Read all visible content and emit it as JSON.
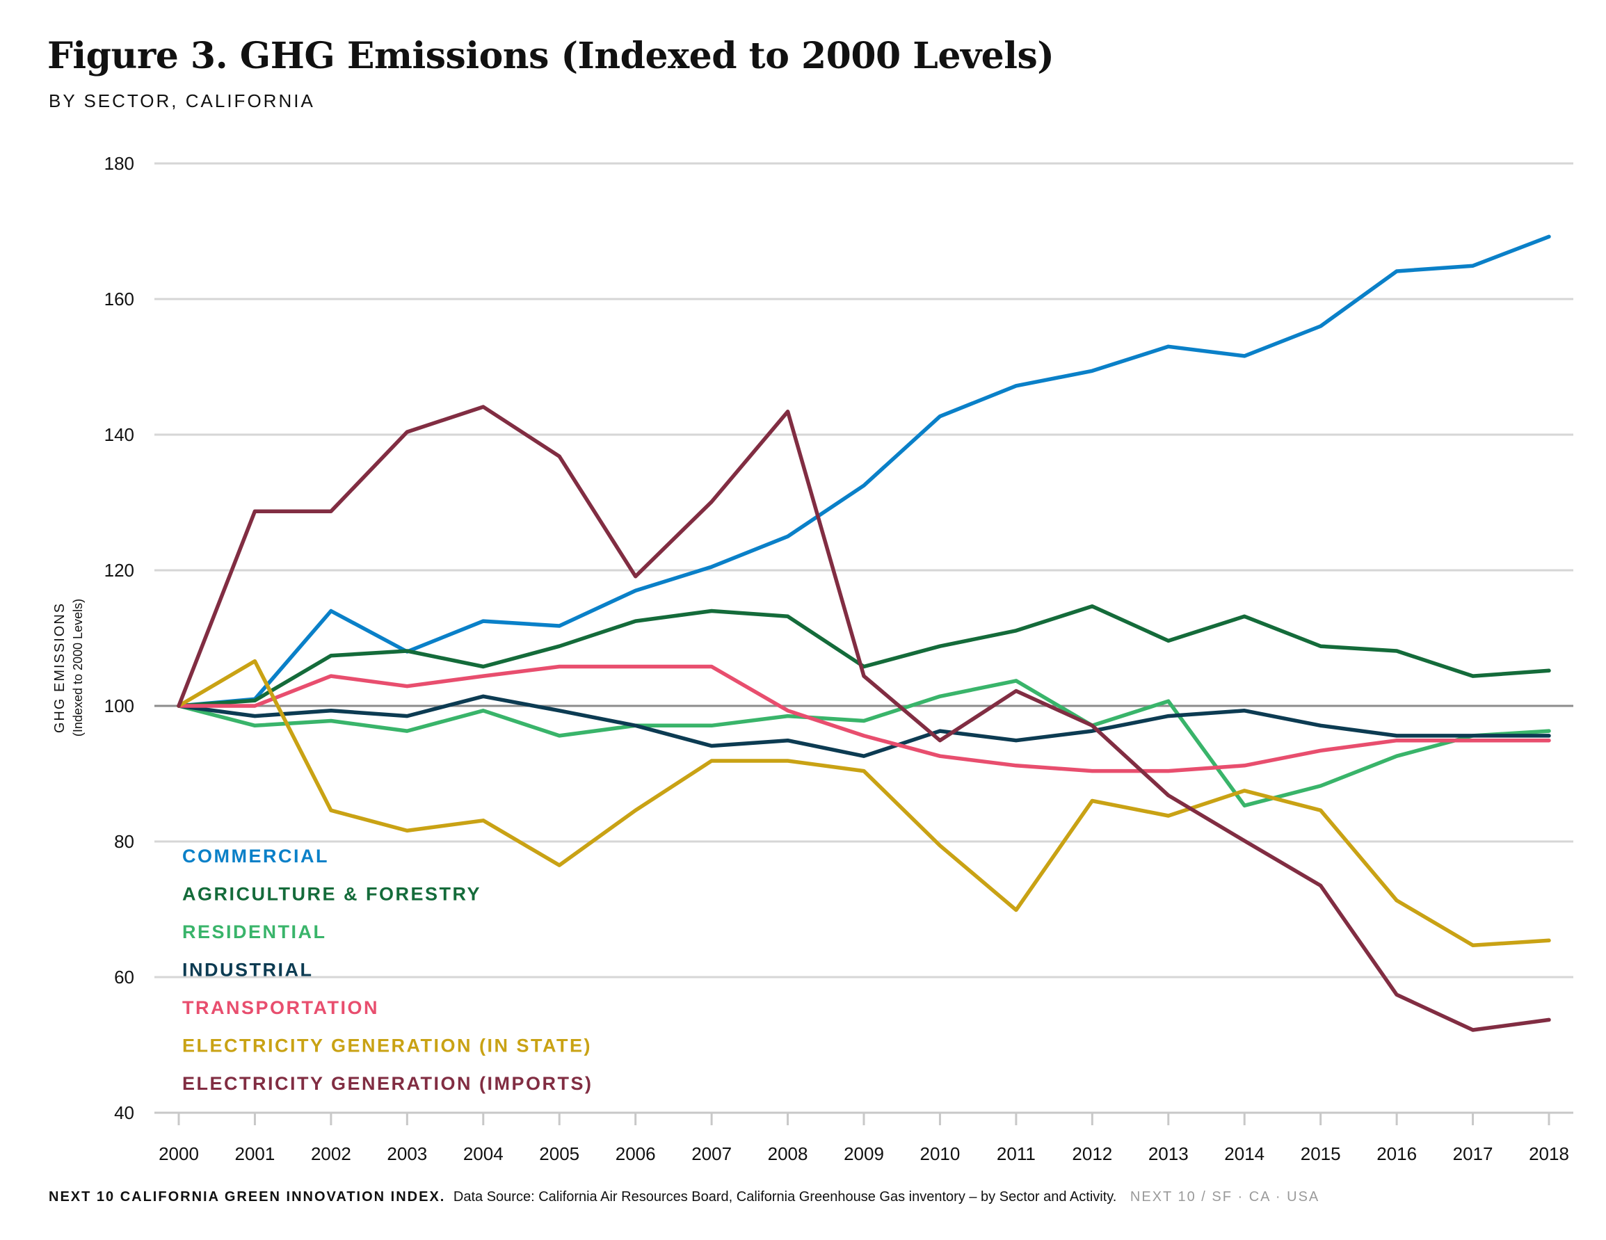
{
  "header": {
    "title": "Figure 3. GHG Emissions (Indexed to 2000 Levels)",
    "subtitle": "BY SECTOR, CALIFORNIA"
  },
  "footer": {
    "index_name": "NEXT 10 CALIFORNIA GREEN INNOVATION INDEX.",
    "source": "Data Source: California Air Resources Board, California Greenhouse Gas inventory – by Sector and Activity.",
    "brand": "NEXT 10 / SF · CA · USA"
  },
  "chart_data": {
    "type": "line",
    "ylabel": "GHG EMISSIONS",
    "ylabel_sub": "(Indexed to 2000 Levels)",
    "xlabel": "",
    "ylim": [
      40,
      180
    ],
    "yticks": [
      40,
      60,
      80,
      100,
      120,
      140,
      160,
      180
    ],
    "baseline": 100,
    "grid": true,
    "legend_position": "bottom-left",
    "x": [
      2000,
      2001,
      2002,
      2003,
      2004,
      2005,
      2006,
      2007,
      2008,
      2009,
      2010,
      2011,
      2012,
      2013,
      2014,
      2015,
      2016,
      2017,
      2018
    ],
    "series": [
      {
        "name": "COMMERCIAL",
        "color": "#0a80c8",
        "values": [
          100,
          101,
          114,
          108,
          112.5,
          111.8,
          117,
          120.5,
          125,
          132.5,
          142.7,
          147.2,
          149.4,
          153,
          151.6,
          156,
          164.1,
          164.9,
          169.2
        ]
      },
      {
        "name": "AGRICULTURE & FORESTRY",
        "color": "#146b3a",
        "values": [
          100,
          100.8,
          107.4,
          108.1,
          105.8,
          108.8,
          112.5,
          114,
          113.2,
          105.8,
          108.8,
          111.1,
          114.7,
          109.6,
          113.2,
          108.8,
          108.1,
          104.4,
          105.2
        ]
      },
      {
        "name": "RESIDENTIAL",
        "color": "#39b46a",
        "values": [
          100,
          97.1,
          97.8,
          96.3,
          99.3,
          95.6,
          97.1,
          97.1,
          98.5,
          97.8,
          101.4,
          103.7,
          97.1,
          100.7,
          85.3,
          88.2,
          92.6,
          95.6,
          96.3
        ]
      },
      {
        "name": "INDUSTRIAL",
        "color": "#0c3b52",
        "values": [
          100,
          98.5,
          99.3,
          98.5,
          101.4,
          99.3,
          97.1,
          94.1,
          94.9,
          92.6,
          96.3,
          94.9,
          96.3,
          98.5,
          99.3,
          97.1,
          95.6,
          95.6,
          95.6
        ]
      },
      {
        "name": "TRANSPORTATION",
        "color": "#e84e6e",
        "values": [
          100,
          100,
          104.4,
          102.9,
          104.4,
          105.8,
          105.8,
          105.8,
          99.3,
          95.6,
          92.6,
          91.2,
          90.4,
          90.4,
          91.2,
          93.4,
          94.9,
          94.9,
          94.9
        ]
      },
      {
        "name": "ELECTRICITY GENERATION (IN STATE)",
        "color": "#c9a214",
        "values": [
          100,
          106.6,
          84.6,
          81.6,
          83.1,
          76.5,
          84.6,
          91.9,
          91.9,
          90.4,
          79.4,
          69.9,
          86,
          83.8,
          87.5,
          84.6,
          71.3,
          64.7,
          65.4
        ]
      },
      {
        "name": "ELECTRICITY GENERATION (IMPORTS)",
        "color": "#812d42",
        "values": [
          100,
          128.7,
          128.7,
          140.4,
          144.1,
          136.8,
          119.1,
          130.1,
          143.4,
          104.4,
          94.9,
          102.2,
          97.1,
          86.8,
          80.1,
          73.5,
          57.4,
          52.2,
          53.7
        ]
      }
    ]
  }
}
